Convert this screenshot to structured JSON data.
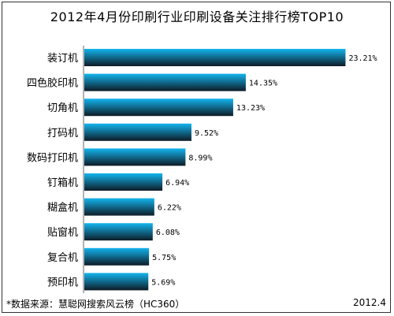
{
  "chart_data": {
    "type": "bar",
    "orientation": "horizontal",
    "title": "2012年4月份印刷行业印刷设备关注排行榜TOP10",
    "categories": [
      "装订机",
      "四色胶印机",
      "切角机",
      "打码机",
      "数码打印机",
      "钉箱机",
      "糊盒机",
      "贴窗机",
      "复合机",
      "预印机"
    ],
    "values": [
      23.21,
      14.35,
      13.23,
      9.52,
      8.99,
      6.94,
      6.22,
      6.08,
      5.75,
      5.69
    ],
    "value_labels": [
      "23.21%",
      "14.35%",
      "13.23%",
      "9.52%",
      "8.99%",
      "6.94%",
      "6.22%",
      "6.08%",
      "5.75%",
      "5.69%"
    ],
    "xlim": [
      0,
      25
    ],
    "grid": false,
    "legend": "none",
    "bar_color_light": "#13b4ee",
    "bar_color_dark": "#0d1b26"
  },
  "footer": {
    "source": "*数据来源：慧聪网搜索风云榜（HC360）",
    "date": "2012.4"
  }
}
